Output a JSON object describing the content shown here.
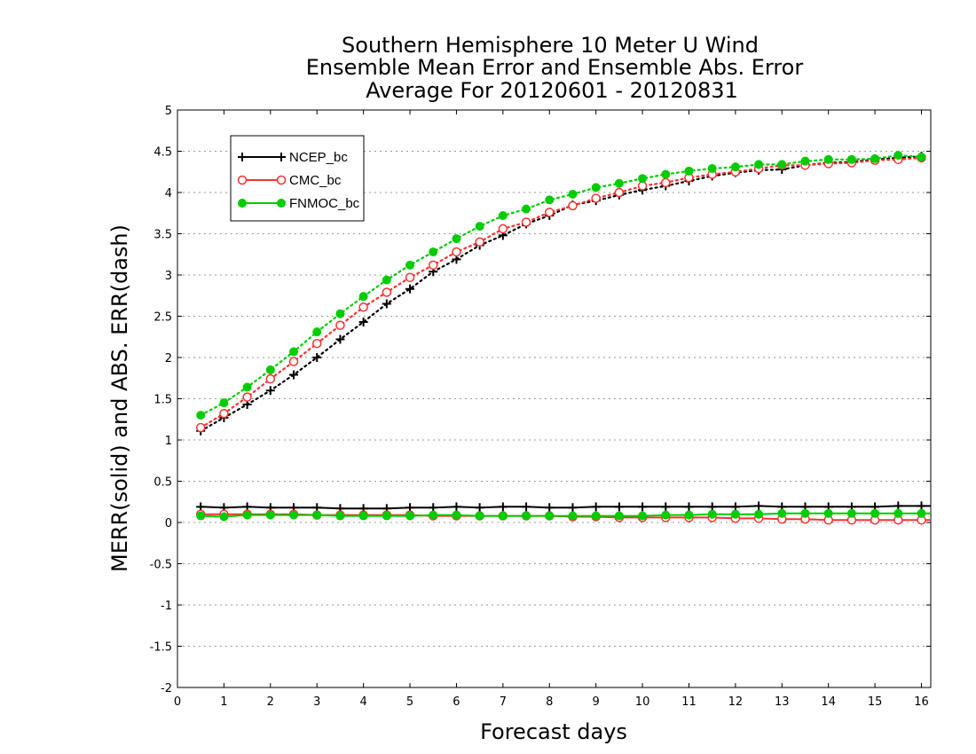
{
  "chart_data": {
    "type": "line",
    "title": [
      "Southern Hemisphere 10 Meter U Wind",
      "Ensemble Mean Error and Ensemble Abs. Error",
      "Average For 20120601 - 20120831"
    ],
    "xlabel": "Forecast days",
    "ylabel": "MERR(solid) and ABS. ERR(dash)",
    "xlim": [
      0,
      16.2
    ],
    "ylim": [
      -2,
      5
    ],
    "xticks": [
      0,
      1,
      2,
      3,
      4,
      5,
      6,
      7,
      8,
      9,
      10,
      11,
      12,
      13,
      14,
      15,
      16
    ],
    "yticks": [
      -2,
      -1.5,
      -1,
      -0.5,
      0,
      0.5,
      1,
      1.5,
      2,
      2.5,
      3,
      3.5,
      4,
      4.5,
      5
    ],
    "grid": "horizontal dotted",
    "legend_position": "top-left",
    "x": [
      0.5,
      1,
      1.5,
      2,
      2.5,
      3,
      3.5,
      4,
      4.5,
      5,
      5.5,
      6,
      6.5,
      7,
      7.5,
      8,
      8.5,
      9,
      9.5,
      10,
      10.5,
      11,
      11.5,
      12,
      12.5,
      13,
      13.5,
      14,
      14.5,
      15,
      15.5,
      16
    ],
    "series": [
      {
        "name": "NCEP_bc",
        "color": "#000000",
        "marker": "plus",
        "merr": [
          0.19,
          0.18,
          0.19,
          0.18,
          0.18,
          0.18,
          0.17,
          0.17,
          0.17,
          0.18,
          0.18,
          0.19,
          0.18,
          0.19,
          0.19,
          0.18,
          0.18,
          0.19,
          0.19,
          0.19,
          0.19,
          0.19,
          0.19,
          0.19,
          0.2,
          0.19,
          0.19,
          0.19,
          0.19,
          0.19,
          0.2,
          0.2
        ],
        "abs_err": [
          1.11,
          1.27,
          1.43,
          1.6,
          1.79,
          2.0,
          2.22,
          2.43,
          2.65,
          2.83,
          3.04,
          3.19,
          3.36,
          3.48,
          3.62,
          3.72,
          3.85,
          3.9,
          3.97,
          4.03,
          4.08,
          4.14,
          4.2,
          4.24,
          4.27,
          4.28,
          4.33,
          4.36,
          4.37,
          4.4,
          4.42,
          4.44
        ]
      },
      {
        "name": "CMC_bc",
        "color": "#ff3030",
        "marker": "open-circle",
        "merr": [
          0.1,
          0.1,
          0.1,
          0.1,
          0.1,
          0.09,
          0.09,
          0.09,
          0.09,
          0.09,
          0.08,
          0.08,
          0.08,
          0.08,
          0.08,
          0.08,
          0.07,
          0.07,
          0.06,
          0.06,
          0.06,
          0.06,
          0.06,
          0.05,
          0.05,
          0.04,
          0.04,
          0.03,
          0.03,
          0.03,
          0.03,
          0.03
        ],
        "abs_err": [
          1.15,
          1.32,
          1.52,
          1.74,
          1.95,
          2.17,
          2.39,
          2.61,
          2.79,
          2.97,
          3.12,
          3.28,
          3.4,
          3.56,
          3.64,
          3.76,
          3.84,
          3.93,
          4.0,
          4.08,
          4.12,
          4.18,
          4.22,
          4.25,
          4.29,
          4.33,
          4.33,
          4.35,
          4.36,
          4.39,
          4.4,
          4.42
        ]
      },
      {
        "name": "FNMOC_bc",
        "color": "#00cc00",
        "marker": "filled-circle",
        "merr": [
          0.08,
          0.07,
          0.09,
          0.09,
          0.09,
          0.09,
          0.08,
          0.08,
          0.08,
          0.08,
          0.09,
          0.09,
          0.08,
          0.08,
          0.08,
          0.08,
          0.08,
          0.08,
          0.08,
          0.08,
          0.09,
          0.09,
          0.1,
          0.1,
          0.1,
          0.11,
          0.11,
          0.11,
          0.11,
          0.11,
          0.11,
          0.11
        ],
        "abs_err": [
          1.3,
          1.45,
          1.64,
          1.85,
          2.07,
          2.31,
          2.53,
          2.74,
          2.94,
          3.12,
          3.28,
          3.44,
          3.59,
          3.72,
          3.8,
          3.91,
          3.98,
          4.06,
          4.11,
          4.17,
          4.22,
          4.26,
          4.29,
          4.31,
          4.34,
          4.34,
          4.38,
          4.4,
          4.4,
          4.41,
          4.45,
          4.43
        ]
      }
    ]
  }
}
